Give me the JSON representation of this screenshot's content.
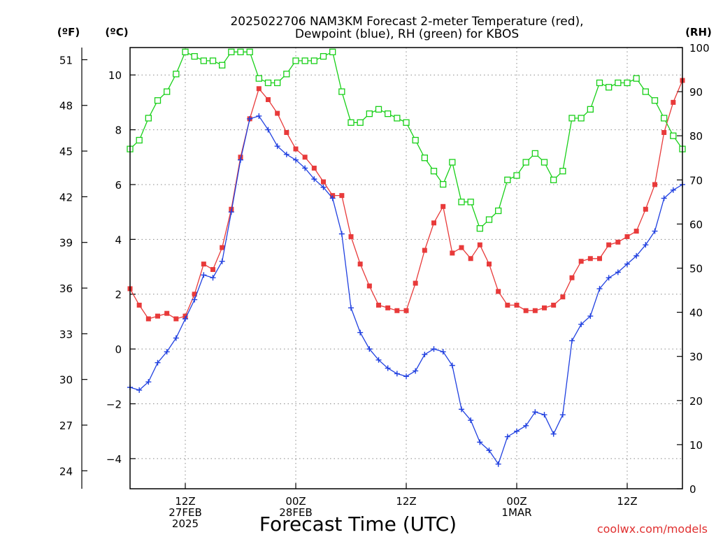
{
  "title": {
    "line1": "2025022706 NAM3KM Forecast 2-meter Temperature (red),",
    "line2": "Dewpoint (blue), RH (green) for KBOS"
  },
  "units": {
    "fahrenheit": "(ºF)",
    "celsius": "(ºC)",
    "rh": "(RH)"
  },
  "x_axis_label": "Forecast Time (UTC)",
  "credit": "coolwx.com/models",
  "chart_data": {
    "type": "line",
    "x_hours_from_run_start": "2025-02-27 06Z",
    "x_ticks": [
      {
        "hour": 6,
        "lines": [
          "12Z",
          "27FEB",
          "2025"
        ]
      },
      {
        "hour": 18,
        "lines": [
          "00Z",
          "28FEB"
        ]
      },
      {
        "hour": 30,
        "lines": [
          "12Z"
        ]
      },
      {
        "hour": 42,
        "lines": [
          "00Z",
          "1MAR"
        ]
      },
      {
        "hour": 54,
        "lines": [
          "12Z"
        ]
      }
    ],
    "xlim": [
      0,
      60
    ],
    "celsius_axis": {
      "ylim": [
        -5.1,
        11
      ],
      "ticks": [
        -4,
        -2,
        0,
        2,
        4,
        6,
        8,
        10
      ]
    },
    "fahrenheit_axis": {
      "ticks": [
        24,
        27,
        30,
        33,
        36,
        39,
        42,
        45,
        48,
        51
      ]
    },
    "rh_axis": {
      "ylim": [
        0,
        100
      ],
      "ticks": [
        0,
        10,
        20,
        30,
        40,
        50,
        60,
        70,
        80,
        90,
        100
      ]
    },
    "grid": true,
    "series": [
      {
        "name": "Temperature",
        "axis": "celsius",
        "color": "#e83a3a",
        "marker": "filled-square",
        "values": [
          2.2,
          1.6,
          1.1,
          1.2,
          1.3,
          1.1,
          1.2,
          2.0,
          3.1,
          2.9,
          3.7,
          5.1,
          7.0,
          8.4,
          9.5,
          9.1,
          8.6,
          7.9,
          7.3,
          7.0,
          6.6,
          6.1,
          5.6,
          5.6,
          4.1,
          3.1,
          2.3,
          1.6,
          1.5,
          1.4,
          1.4,
          2.4,
          3.6,
          4.6,
          5.2,
          3.5,
          3.7,
          3.3,
          3.8,
          3.1,
          2.1,
          1.6,
          1.6,
          1.4,
          1.4,
          1.5,
          1.6,
          1.9,
          2.6,
          3.2,
          3.3,
          3.3,
          3.8,
          3.9,
          4.1,
          4.3,
          5.1,
          6.0,
          7.9,
          9.0,
          9.8
        ]
      },
      {
        "name": "Dewpoint",
        "axis": "celsius",
        "color": "#2040e0",
        "marker": "plus",
        "values": [
          -1.4,
          -1.5,
          -1.2,
          -0.5,
          -0.1,
          0.4,
          1.1,
          1.8,
          2.7,
          2.6,
          3.2,
          5.0,
          6.9,
          8.4,
          8.5,
          8.0,
          7.4,
          7.1,
          6.9,
          6.6,
          6.2,
          5.9,
          5.5,
          4.2,
          1.5,
          0.6,
          0.0,
          -0.4,
          -0.7,
          -0.9,
          -1.0,
          -0.8,
          -0.2,
          0.0,
          -0.1,
          -0.6,
          -2.2,
          -2.6,
          -3.4,
          -3.7,
          -4.2,
          -3.2,
          -3.0,
          -2.8,
          -2.3,
          -2.4,
          -3.1,
          -2.4,
          0.3,
          0.9,
          1.2,
          2.2,
          2.6,
          2.8,
          3.1,
          3.4,
          3.8,
          4.3,
          5.5,
          5.8,
          6.0
        ]
      },
      {
        "name": "RH",
        "axis": "rh",
        "color": "#18d018",
        "marker": "open-square",
        "values": [
          77,
          79,
          84,
          88,
          90,
          94,
          99,
          98,
          97,
          97,
          96,
          99,
          99,
          99,
          93,
          92,
          92,
          94,
          97,
          97,
          97,
          98,
          99,
          90,
          83,
          83,
          85,
          86,
          85,
          84,
          83,
          79,
          75,
          72,
          69,
          74,
          65,
          65,
          59,
          61,
          63,
          70,
          71,
          74,
          76,
          74,
          70,
          72,
          84,
          84,
          86,
          92,
          91,
          92,
          92,
          93,
          90,
          88,
          84,
          80,
          77
        ]
      }
    ]
  }
}
